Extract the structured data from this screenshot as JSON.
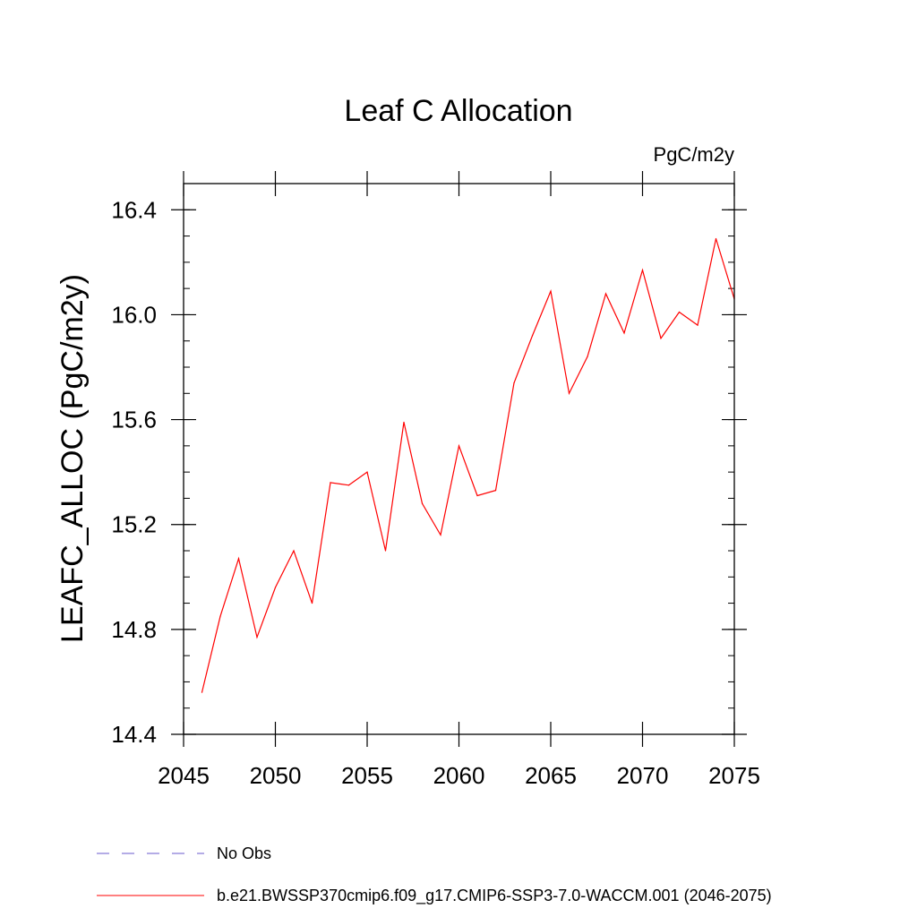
{
  "chart_data": {
    "type": "line",
    "title": "Leaf C Allocation",
    "units_label": "PgC/m2y",
    "xlabel": "",
    "ylabel": "LEAFC_ALLOC  (PgC/m2y)",
    "xlim": [
      2045,
      2075
    ],
    "ylim": [
      14.4,
      16.5
    ],
    "x_ticks": [
      2045,
      2050,
      2055,
      2060,
      2065,
      2070,
      2075
    ],
    "y_ticks": [
      "14.4",
      "14.8",
      "15.2",
      "15.6",
      "16.0",
      "16.4"
    ],
    "series": [
      {
        "name": "b.e21.BWSSP370cmip6.f09_g17.CMIP6-SSP3-7.0-WACCM.001 (2046-2075)",
        "color": "#ff0000",
        "style": "solid",
        "x": [
          2046,
          2047,
          2048,
          2049,
          2050,
          2051,
          2052,
          2053,
          2054,
          2055,
          2056,
          2057,
          2058,
          2059,
          2060,
          2061,
          2062,
          2063,
          2064,
          2065,
          2066,
          2067,
          2068,
          2069,
          2070,
          2071,
          2072,
          2073,
          2074,
          2075
        ],
        "values": [
          14.56,
          14.85,
          15.07,
          14.77,
          14.96,
          15.1,
          14.9,
          15.36,
          15.35,
          15.4,
          15.1,
          15.59,
          15.28,
          15.16,
          15.5,
          15.31,
          15.33,
          15.74,
          15.92,
          16.09,
          15.7,
          15.84,
          16.08,
          15.93,
          16.17,
          15.91,
          16.01,
          15.96,
          16.29,
          16.06
        ]
      }
    ],
    "legend": [
      {
        "label": "No Obs",
        "color": "#6a5acd",
        "style": "dashed"
      },
      {
        "label": "b.e21.BWSSP370cmip6.f09_g17.CMIP6-SSP3-7.0-WACCM.001 (2046-2075)",
        "color": "#ff0000",
        "style": "solid"
      }
    ]
  }
}
